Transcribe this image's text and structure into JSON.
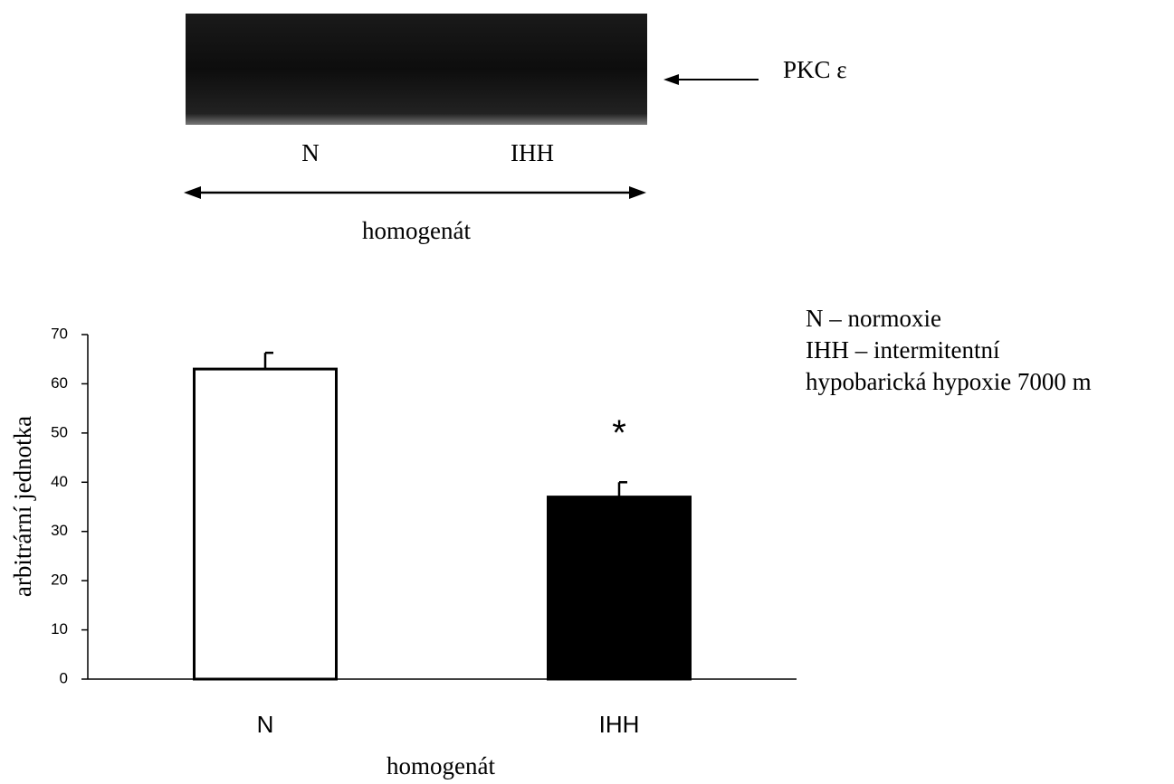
{
  "blot": {
    "protein": "PKC ε",
    "lanes": [
      "N",
      "IHH"
    ],
    "fraction": "homogenát"
  },
  "notes": [
    "N – normoxie",
    "IHH – intermitentní",
    "hypobarická hypoxie 7000 m"
  ],
  "chart_data": {
    "type": "bar",
    "y_label": "arbitrární jednotka",
    "x_label": "homogenát",
    "categories": [
      "N",
      "IHH"
    ],
    "values": [
      63,
      37
    ],
    "errors": [
      3.3,
      3
    ],
    "colors": [
      "#ffffff",
      "#000000"
    ],
    "annotations": [
      {
        "text": "*",
        "category": "IHH"
      }
    ],
    "ylim": [
      0,
      70
    ],
    "yticks": [
      0,
      10,
      20,
      30,
      40,
      50,
      60,
      70
    ],
    "grid": false
  }
}
